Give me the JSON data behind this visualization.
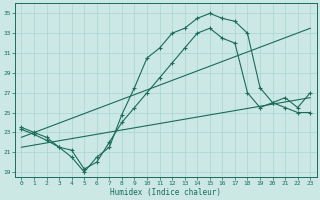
{
  "xlabel": "Humidex (Indice chaleur)",
  "bg_color": "#cce8e5",
  "grid_color": "#aad4cf",
  "line_color": "#1a6b5a",
  "xlim": [
    -0.5,
    23.5
  ],
  "ylim": [
    18.5,
    36
  ],
  "xticks": [
    0,
    1,
    2,
    3,
    4,
    5,
    6,
    7,
    8,
    9,
    10,
    11,
    12,
    13,
    14,
    15,
    16,
    17,
    18,
    19,
    20,
    21,
    22,
    23
  ],
  "yticks": [
    19,
    21,
    23,
    25,
    27,
    29,
    31,
    33,
    35
  ],
  "zigzag1_x": [
    0,
    1,
    2,
    3,
    4,
    5,
    6,
    7,
    8,
    9,
    10,
    11,
    12,
    13,
    14,
    15,
    16,
    17,
    18,
    19,
    20,
    21,
    22,
    23
  ],
  "zigzag1_y": [
    23.5,
    23.0,
    22.5,
    21.5,
    20.5,
    19.0,
    20.5,
    21.5,
    24.8,
    27.5,
    30.5,
    31.5,
    33.0,
    33.5,
    34.5,
    35.0,
    34.5,
    34.2,
    33.0,
    27.5,
    26.0,
    26.5,
    25.5,
    27.0
  ],
  "zigzag2_x": [
    0,
    1,
    2,
    3,
    4,
    5,
    6,
    7,
    8,
    9,
    10,
    11,
    12,
    13,
    14,
    15,
    16,
    17,
    18,
    19,
    20,
    21,
    22,
    23
  ],
  "zigzag2_y": [
    23.3,
    22.8,
    22.2,
    21.5,
    21.2,
    19.3,
    20.0,
    22.0,
    24.0,
    25.5,
    27.0,
    28.5,
    30.0,
    31.5,
    33.0,
    33.5,
    32.5,
    32.0,
    27.0,
    25.5,
    26.0,
    25.5,
    25.0,
    25.0
  ],
  "trend1_x": [
    0,
    23
  ],
  "trend1_y": [
    22.5,
    33.5
  ],
  "trend2_x": [
    0,
    23
  ],
  "trend2_y": [
    21.5,
    26.5
  ],
  "figsize": [
    3.2,
    2.0
  ],
  "dpi": 100
}
